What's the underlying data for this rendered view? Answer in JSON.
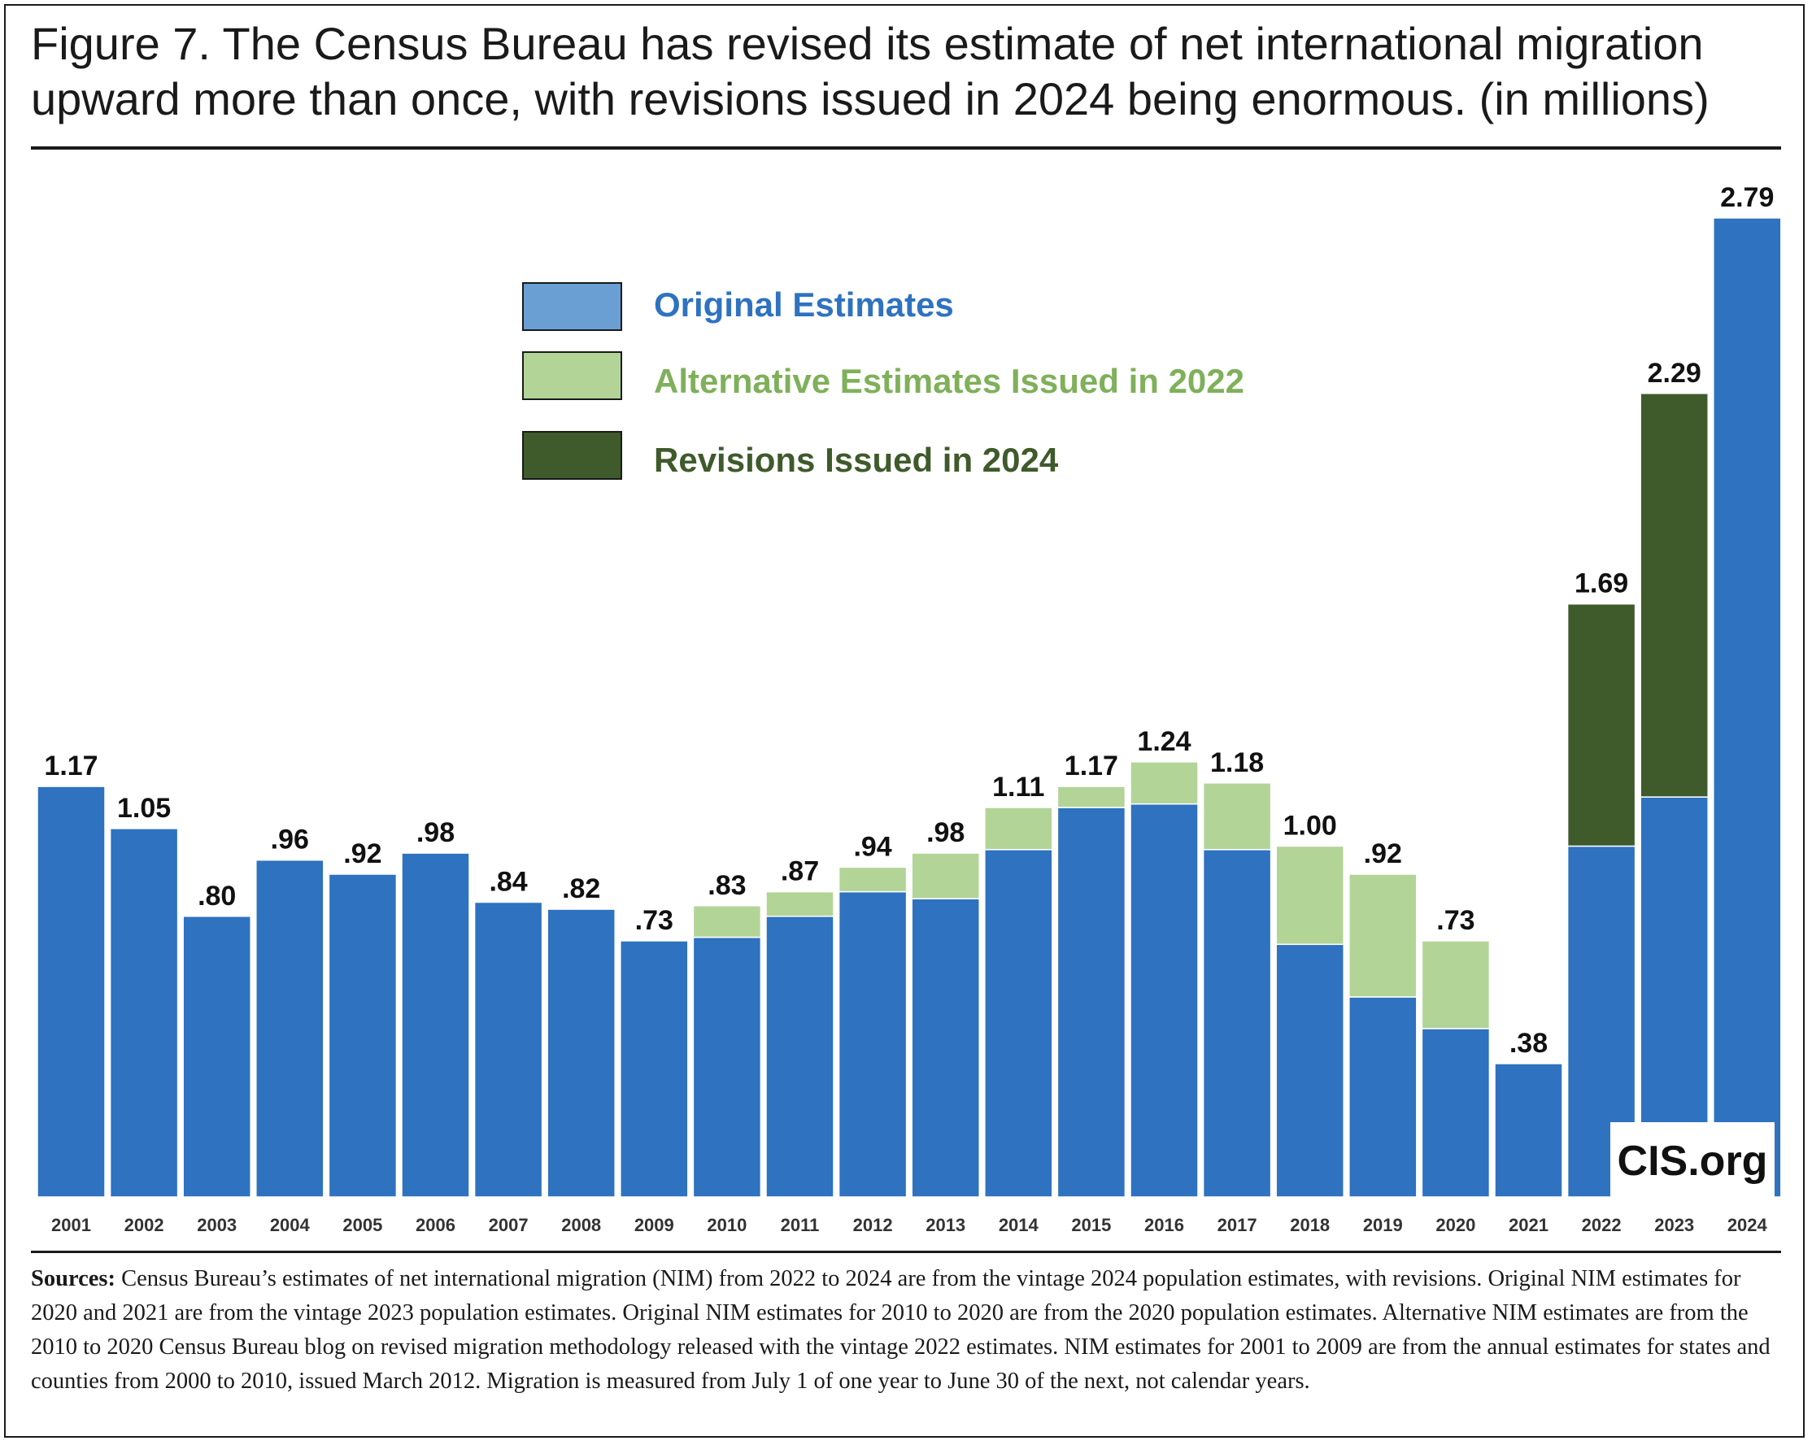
{
  "title": "Figure 7. The Census Bureau has revised its estimate of net international migration upward more than once, with revisions issued in 2024 being enormous. (in millions)",
  "logo_text": "CIS.org",
  "sources_label": "Sources:",
  "sources_text": "Census Bureau’s estimates of net international migration (NIM) from 2022 to 2024 are from the vintage 2024 population estimates, with revisions. Original NIM estimates for 2020 and 2021 are from the vintage 2023 population estimates. Original NIM estimates for 2010 to 2020 are from the 2020 population estimates. Alternative NIM estimates are from the 2010 to 2020 Census Bureau blog on revised migration methodology released with the vintage 2022 estimates. NIM estimates for 2001 to 2009 are from the annual estimates for states and counties from 2000 to 2010, issued March 2012. Migration is measured from July 1 of one year to June 30 of the next, not calendar years.",
  "colors": {
    "original": "#2e72c0",
    "alternative": "#b3d497",
    "revision": "#3f5a2b",
    "legend_original_swatch": "#6a9fd4",
    "legend_original_text": "#2e72c0",
    "legend_alternative_text": "#7fb05a",
    "legend_revision_text": "#3f5a2b"
  },
  "chart_data": {
    "type": "bar",
    "stacked": true,
    "title": "Figure 7. The Census Bureau has revised its estimate of net international migration upward more than once, with revisions issued in 2024 being enormous. (in millions)",
    "ylim": [
      0,
      3.0
    ],
    "grid": false,
    "legend_position": "top-center",
    "categories": [
      "2001",
      "2002",
      "2003",
      "2004",
      "2005",
      "2006",
      "2007",
      "2008",
      "2009",
      "2010",
      "2011",
      "2012",
      "2013",
      "2014",
      "2015",
      "2016",
      "2017",
      "2018",
      "2019",
      "2020",
      "2021",
      "2022",
      "2023",
      "2024"
    ],
    "series": [
      {
        "name": "Original Estimates",
        "color_key": "original",
        "values": [
          1.17,
          1.05,
          0.8,
          0.96,
          0.92,
          0.98,
          0.84,
          0.82,
          0.73,
          0.74,
          0.8,
          0.87,
          0.85,
          0.99,
          1.11,
          1.12,
          0.99,
          0.72,
          0.57,
          0.48,
          0.38,
          1.0,
          1.14,
          2.79
        ]
      },
      {
        "name": "Alternative Estimates Issued in 2022",
        "color_key": "alternative",
        "values": [
          0,
          0,
          0,
          0,
          0,
          0,
          0,
          0,
          0,
          0.09,
          0.07,
          0.07,
          0.13,
          0.12,
          0.06,
          0.12,
          0.19,
          0.28,
          0.35,
          0.25,
          0,
          0,
          0,
          0
        ]
      },
      {
        "name": "Revisions Issued in 2024",
        "color_key": "revision",
        "values": [
          0,
          0,
          0,
          0,
          0,
          0,
          0,
          0,
          0,
          0,
          0,
          0,
          0,
          0,
          0,
          0,
          0,
          0,
          0,
          0,
          0,
          0.69,
          1.15,
          0
        ]
      }
    ],
    "data_labels": [
      "1.17",
      "1.05",
      ".80",
      ".96",
      ".92",
      ".98",
      ".84",
      ".82",
      ".73",
      ".83",
      ".87",
      ".94",
      ".98",
      "1.11",
      "1.17",
      "1.24",
      "1.18",
      "1.00",
      ".92",
      ".73",
      ".38",
      "1.69",
      "2.29",
      "2.79"
    ]
  }
}
